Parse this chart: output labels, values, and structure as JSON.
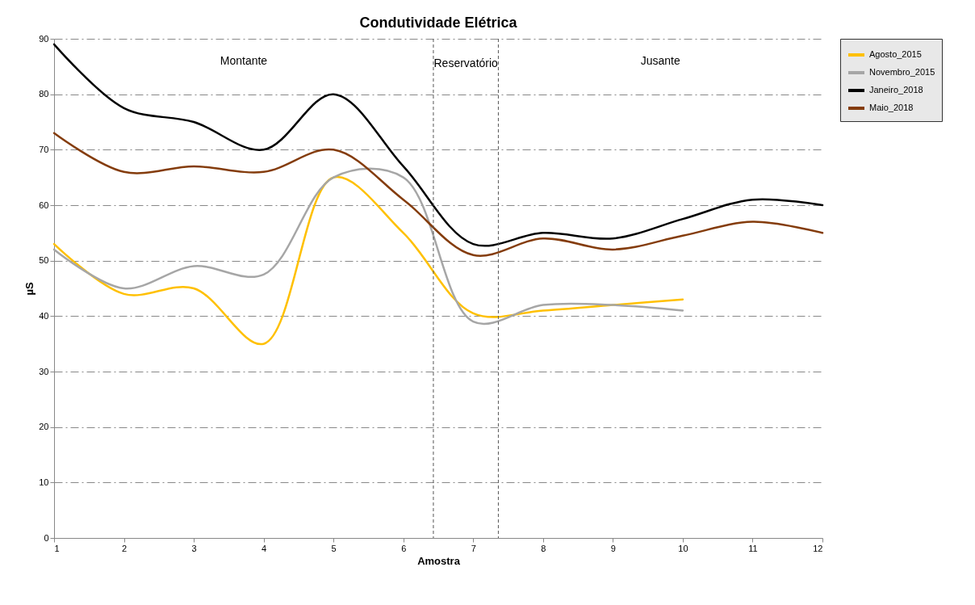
{
  "chart_data": {
    "type": "line",
    "title": "Condutividade Elétrica",
    "xlabel": "Amostra",
    "ylabel": "µS",
    "x": [
      1,
      2,
      3,
      4,
      5,
      6,
      7,
      8,
      9,
      10,
      11,
      12
    ],
    "series": [
      {
        "name": "Agosto_2015",
        "color": "#ffc000",
        "values": [
          53,
          44,
          45,
          35,
          65,
          55,
          40.5,
          41,
          42,
          43,
          null,
          null
        ]
      },
      {
        "name": "Novembro_2015",
        "color": "#a6a6a6",
        "values": [
          52,
          45,
          49,
          47.5,
          65,
          65,
          39,
          42,
          42,
          41,
          null,
          null
        ]
      },
      {
        "name": "Janeiro_2018",
        "color": "#000000",
        "values": [
          89,
          77.5,
          75,
          70,
          80,
          67,
          53,
          55,
          54,
          57.5,
          61,
          60
        ]
      },
      {
        "name": "Maio_2018",
        "color": "#843c0c",
        "values": [
          73,
          66,
          67,
          66,
          70,
          61,
          51,
          54,
          52,
          54.5,
          57,
          55
        ]
      }
    ],
    "xlim": [
      1,
      12
    ],
    "xticks": [
      1,
      2,
      3,
      4,
      5,
      6,
      7,
      8,
      9,
      10,
      11,
      12
    ],
    "ylim": [
      0,
      90
    ],
    "yticks": [
      0,
      10,
      20,
      30,
      40,
      50,
      60,
      70,
      80,
      90
    ],
    "grid": "y",
    "legend": "right",
    "marker": "none",
    "line_style": "solid",
    "ref_lines": [
      {
        "axis": "x",
        "value": 6.43,
        "line_style": "dashed"
      },
      {
        "axis": "x",
        "value": 7.36,
        "line_style": "dashed"
      }
    ],
    "annotations": [
      "Montante",
      "Reservatório",
      "Jusante"
    ]
  }
}
